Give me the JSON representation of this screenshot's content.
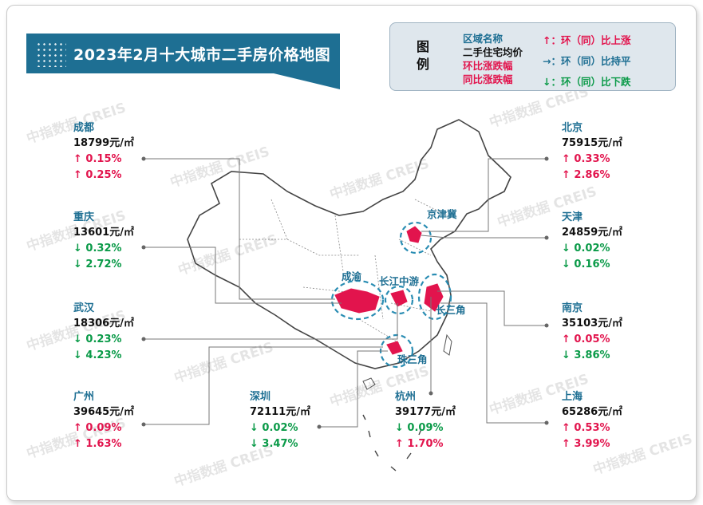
{
  "title": "2023年2月十大城市二手房价格地图",
  "legend": {
    "heading": "图例",
    "items": [
      "区域名称",
      "二手住宅均价",
      "环比涨跌幅",
      "同比涨跌幅"
    ],
    "up": "↑：环（同）比上涨",
    "flat": "→：环（同）比持平",
    "down": "↓：环（同）比下跌",
    "colors": {
      "region": "#1e6f93",
      "price": "#111111",
      "up": "#e2144d",
      "down": "#0a9a48"
    }
  },
  "watermark": "中指数据 CREIS",
  "regions": [
    "京津冀",
    "成渝",
    "长江中游",
    "长三角",
    "珠三角"
  ],
  "cities": [
    {
      "name": "成都",
      "price": "18799元/㎡",
      "mom": "↑ 0.15%",
      "yoy": "↑ 0.25%",
      "mom_dir": "up",
      "yoy_dir": "up"
    },
    {
      "name": "重庆",
      "price": "13601元/㎡",
      "mom": "↓ 0.32%",
      "yoy": "↓ 2.72%",
      "mom_dir": "down",
      "yoy_dir": "down"
    },
    {
      "name": "武汉",
      "price": "18306元/㎡",
      "mom": "↓ 0.23%",
      "yoy": "↓ 4.23%",
      "mom_dir": "down",
      "yoy_dir": "down"
    },
    {
      "name": "广州",
      "price": "39645元/㎡",
      "mom": "↑ 0.09%",
      "yoy": "↑ 1.63%",
      "mom_dir": "up",
      "yoy_dir": "up"
    },
    {
      "name": "深圳",
      "price": "72111元/㎡",
      "mom": "↓ 0.02%",
      "yoy": "↓ 3.47%",
      "mom_dir": "down",
      "yoy_dir": "down"
    },
    {
      "name": "杭州",
      "price": "39177元/㎡",
      "mom": "↓ 0.09%",
      "yoy": "↑ 1.70%",
      "mom_dir": "down",
      "yoy_dir": "up"
    },
    {
      "name": "北京",
      "price": "75915元/㎡",
      "mom": "↑ 0.33%",
      "yoy": "↑ 2.86%",
      "mom_dir": "up",
      "yoy_dir": "up"
    },
    {
      "name": "天津",
      "price": "24859元/㎡",
      "mom": "↓ 0.02%",
      "yoy": "↓ 0.16%",
      "mom_dir": "down",
      "yoy_dir": "down"
    },
    {
      "name": "南京",
      "price": "35103元/㎡",
      "mom": "↑ 0.05%",
      "yoy": "↓ 3.86%",
      "mom_dir": "up",
      "yoy_dir": "down"
    },
    {
      "name": "上海",
      "price": "65286元/㎡",
      "mom": "↑ 0.53%",
      "yoy": "↑ 3.99%",
      "mom_dir": "up",
      "yoy_dir": "up"
    }
  ]
}
